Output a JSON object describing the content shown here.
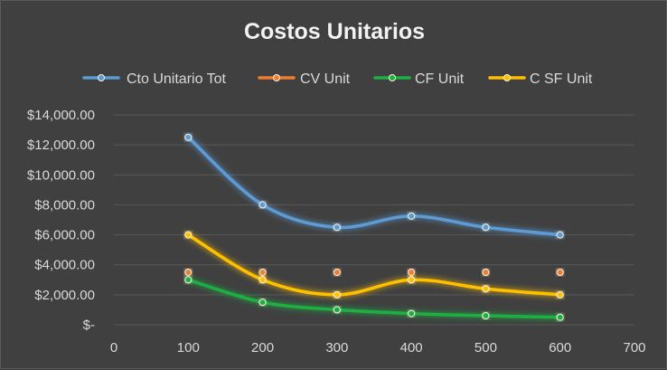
{
  "chart_data": {
    "type": "scatter",
    "title": "Costos Unitarios",
    "xlabel": "",
    "ylabel": "",
    "xlim": [
      0,
      700
    ],
    "ylim": [
      0,
      14000
    ],
    "x_ticks": [
      0,
      100,
      200,
      300,
      400,
      500,
      600,
      700
    ],
    "y_ticks": [
      0,
      2000,
      4000,
      6000,
      8000,
      10000,
      12000,
      14000
    ],
    "x_tick_labels": [
      "0",
      "100",
      "200",
      "300",
      "400",
      "500",
      "600",
      "700"
    ],
    "y_tick_labels": [
      "$-",
      "$2,000.00",
      "$4,000.00",
      "$6,000.00",
      "$8,000.00",
      "$10,000.00",
      "$12,000.00",
      "$14,000.00"
    ],
    "grid": "horizontal",
    "legend_position": "top",
    "smoothed": true,
    "series": [
      {
        "name": "Cto Unitario Tot",
        "color": "#5b9bd5",
        "x": [
          100,
          200,
          300,
          400,
          500,
          600
        ],
        "values": [
          12500,
          8000,
          6500,
          7250,
          6500,
          6000
        ]
      },
      {
        "name": "CV Unit",
        "color": "#ed7d31",
        "x": [
          100,
          200,
          300,
          400,
          500,
          600
        ],
        "values": [
          3500,
          3500,
          3500,
          3500,
          3500,
          3500
        ]
      },
      {
        "name": "CF Unit",
        "color": "#1db043",
        "x": [
          100,
          200,
          300,
          400,
          500,
          600
        ],
        "values": [
          3000,
          1500,
          1000,
          750,
          600,
          500
        ]
      },
      {
        "name": "C SF Unit",
        "color": "#ffc000",
        "x": [
          100,
          200,
          300,
          400,
          500,
          600
        ],
        "values": [
          6000,
          3000,
          2000,
          3000,
          2400,
          2000
        ]
      }
    ]
  }
}
